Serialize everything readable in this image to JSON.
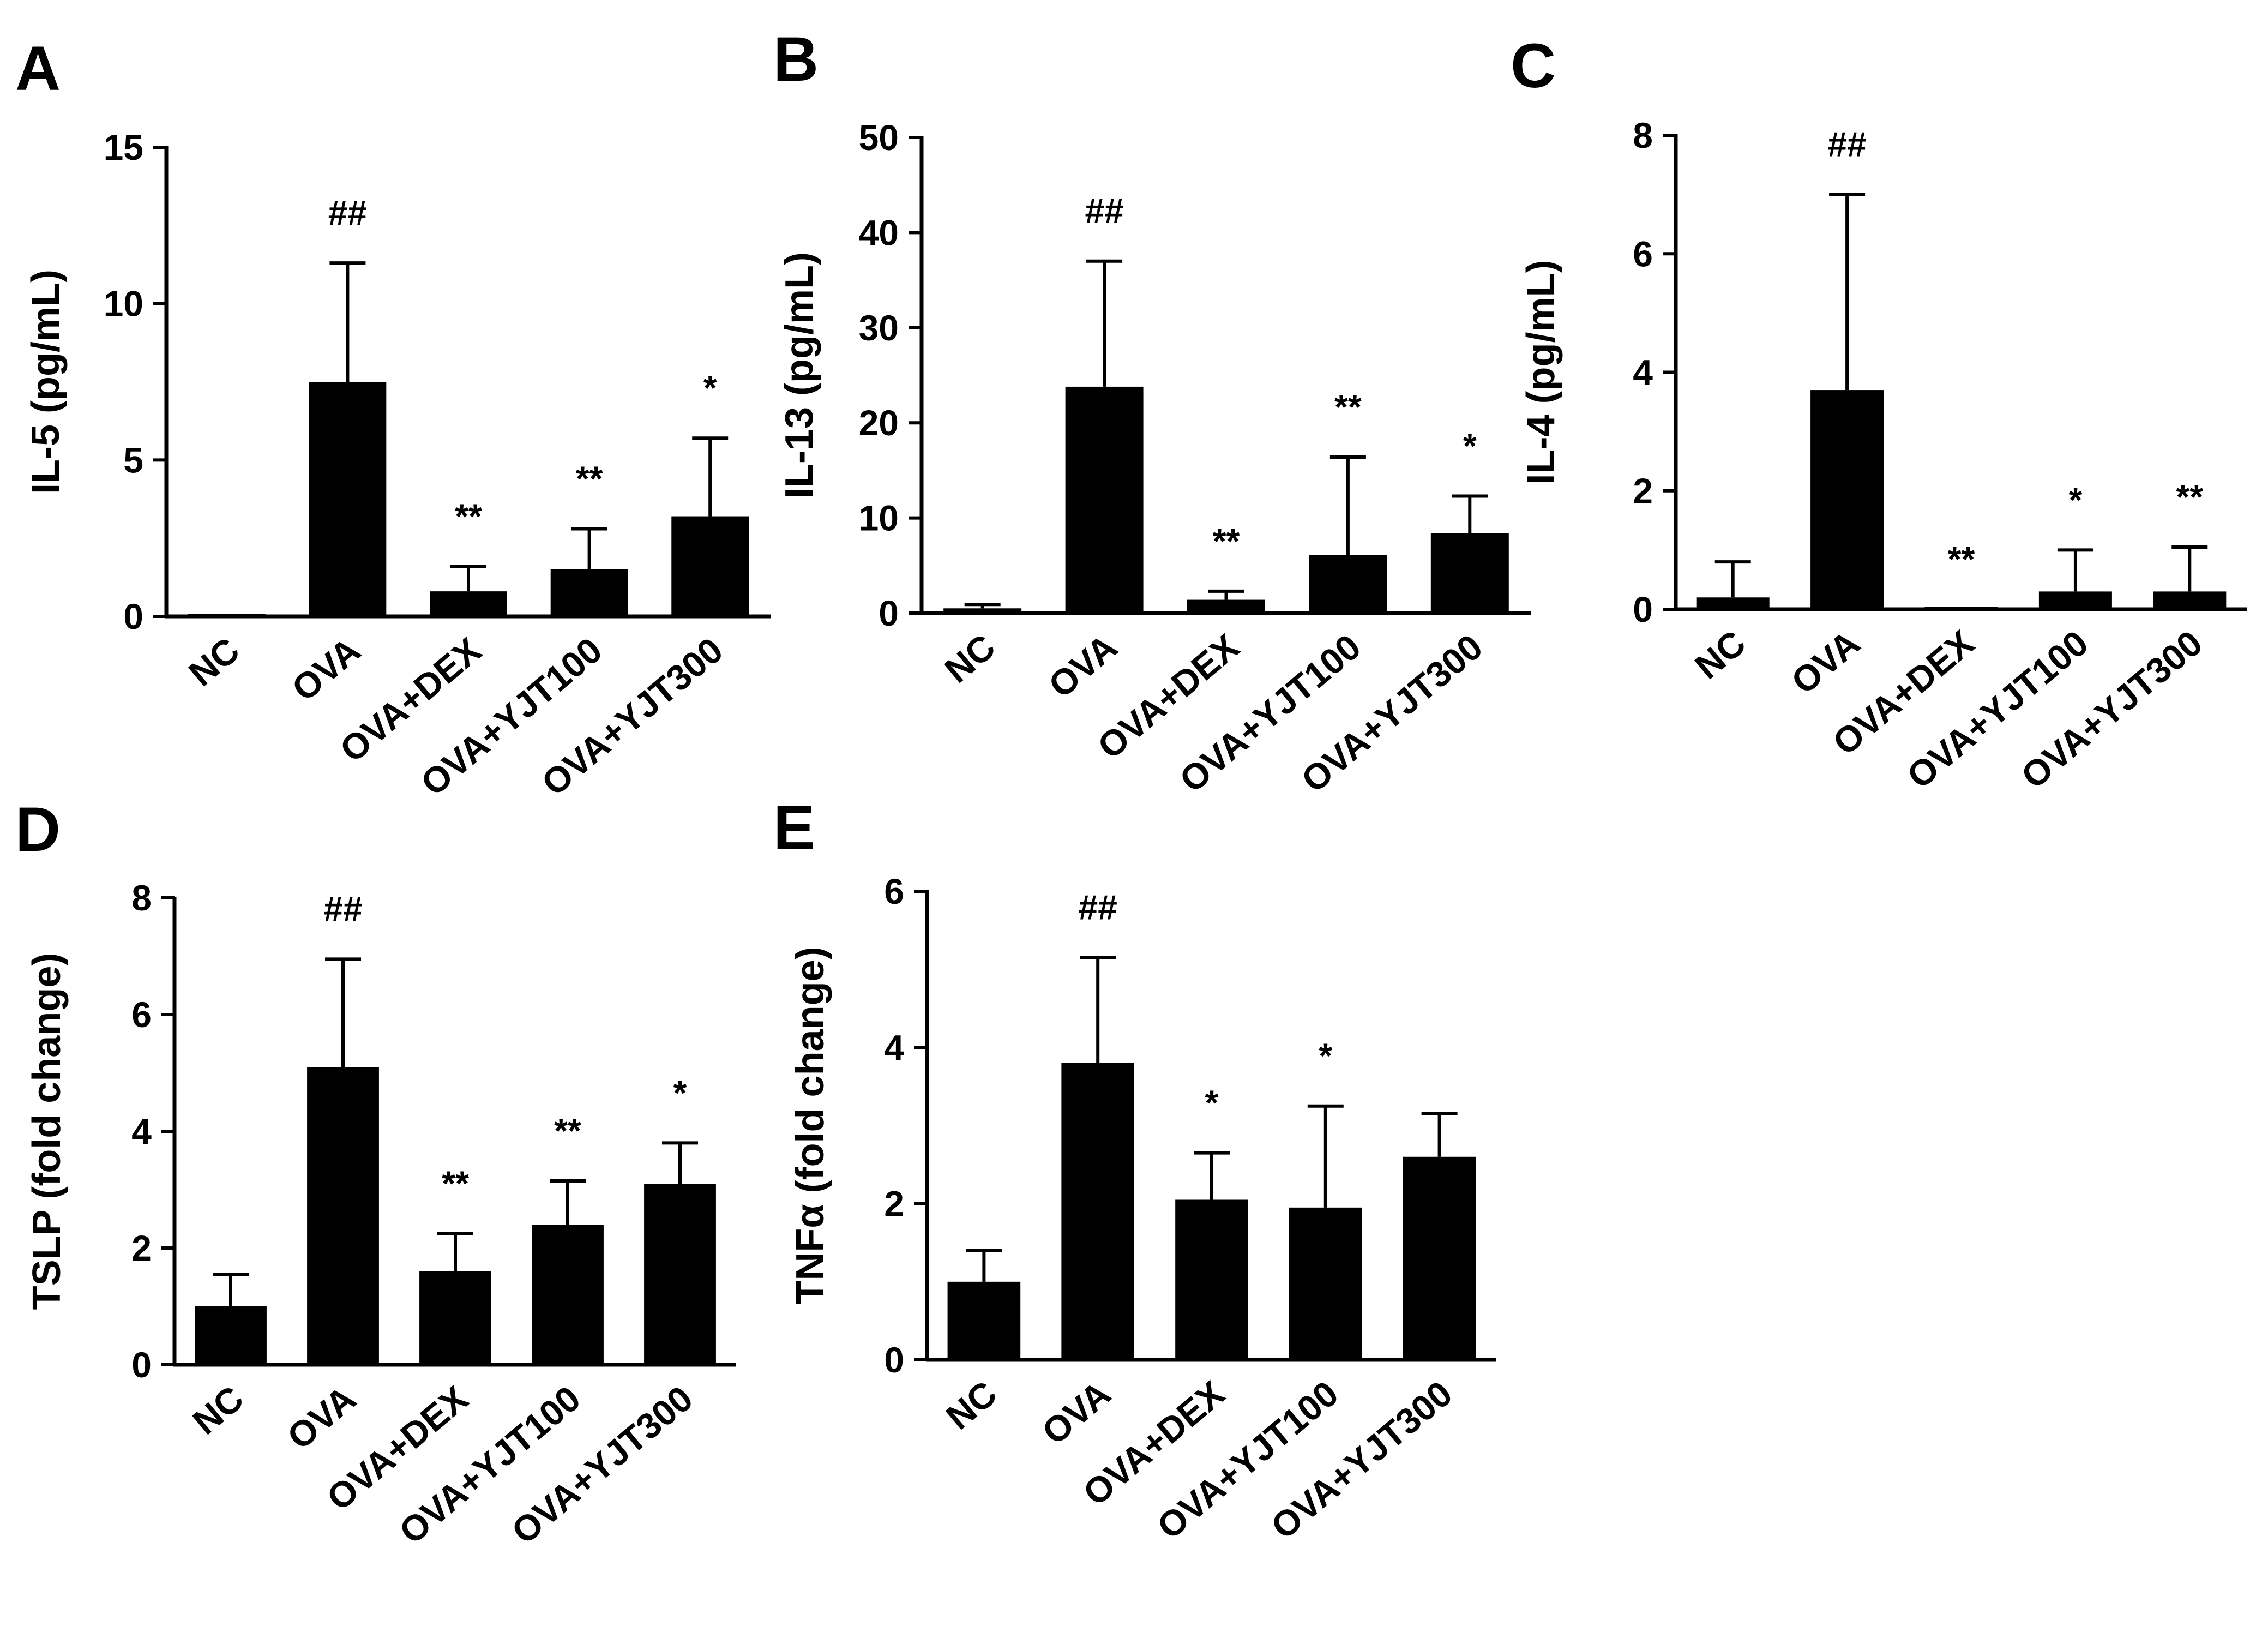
{
  "chart_data": [
    {
      "panel": "A",
      "type": "bar",
      "ylabel": "IL-5 (pg/mL)",
      "categories": [
        "NC",
        "OVA",
        "OVA+DEX",
        "OVA+YJT100",
        "OVA+YJT300"
      ],
      "values": [
        0,
        7.5,
        0.8,
        1.5,
        3.2
      ],
      "errors": [
        0,
        3.8,
        0.8,
        1.3,
        2.5
      ],
      "annotations": [
        "",
        "##",
        "**",
        "**",
        "*"
      ],
      "ylim": [
        0,
        15
      ],
      "yticks": [
        0,
        5,
        10,
        15
      ]
    },
    {
      "panel": "B",
      "type": "bar",
      "ylabel": "IL-13 (pg/mL)",
      "categories": [
        "NC",
        "OVA",
        "OVA+DEX",
        "OVA+YJT100",
        "OVA+YJT300"
      ],
      "values": [
        0.5,
        23.8,
        1.4,
        6.1,
        8.4
      ],
      "errors": [
        0.4,
        13.2,
        0.9,
        10.3,
        3.9
      ],
      "annotations": [
        "",
        "##",
        "**",
        "**",
        "*"
      ],
      "ylim": [
        0,
        50
      ],
      "yticks": [
        0,
        10,
        20,
        30,
        40,
        50
      ]
    },
    {
      "panel": "C",
      "type": "bar",
      "ylabel": "IL-4 (pg/mL)",
      "categories": [
        "NC",
        "OVA",
        "OVA+DEX",
        "OVA+YJT100",
        "OVA+YJT300"
      ],
      "values": [
        0.2,
        3.7,
        0,
        0.3,
        0.3
      ],
      "errors": [
        0.6,
        3.3,
        0,
        0.7,
        0.75
      ],
      "annotations": [
        "",
        "##",
        "**",
        "*",
        "**"
      ],
      "ylim": [
        0,
        8
      ],
      "yticks": [
        0,
        2,
        4,
        6,
        8
      ]
    },
    {
      "panel": "D",
      "type": "bar",
      "ylabel": "TSLP (fold change)",
      "categories": [
        "NC",
        "OVA",
        "OVA+DEX",
        "OVA+YJT100",
        "OVA+YJT300"
      ],
      "values": [
        1.0,
        5.1,
        1.6,
        2.4,
        3.1
      ],
      "errors": [
        0.55,
        1.85,
        0.65,
        0.75,
        0.7
      ],
      "annotations": [
        "",
        "##",
        "**",
        "**",
        "*"
      ],
      "ylim": [
        0,
        8
      ],
      "yticks": [
        0,
        2,
        4,
        6,
        8
      ]
    },
    {
      "panel": "E",
      "type": "bar",
      "ylabel": "TNFα (fold change)",
      "categories": [
        "NC",
        "OVA",
        "OVA+DEX",
        "OVA+YJT100",
        "OVA+YJT300"
      ],
      "values": [
        1.0,
        3.8,
        2.05,
        1.95,
        2.6
      ],
      "errors": [
        0.4,
        1.35,
        0.6,
        1.3,
        0.55
      ],
      "annotations": [
        "",
        "##",
        "*",
        "*",
        ""
      ],
      "ylim": [
        0,
        6
      ],
      "yticks": [
        0,
        2,
        4,
        6
      ]
    }
  ]
}
